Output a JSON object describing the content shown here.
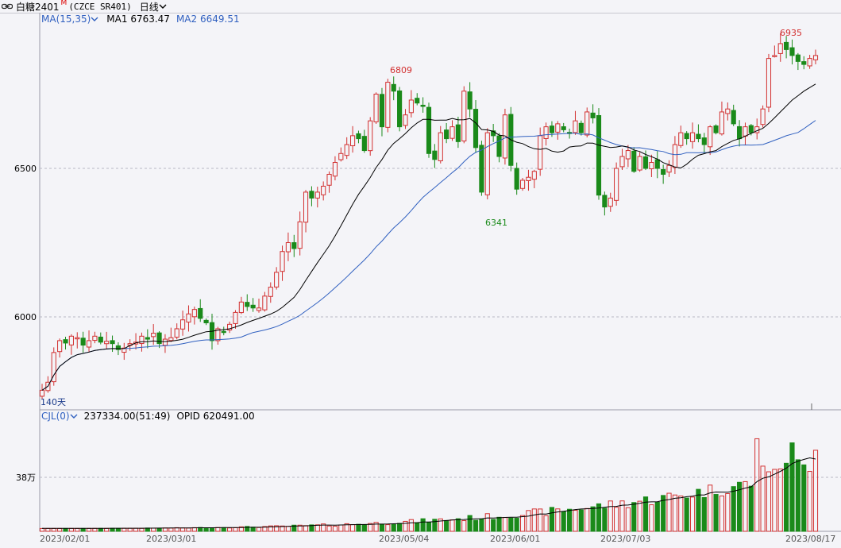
{
  "titlebar": {
    "icon": "link-icon",
    "symbol": "白糖2401",
    "superscript": "M",
    "code": "(CZCE SR401)",
    "period": "日线"
  },
  "ma_info": {
    "indicator": "MA(15,35)",
    "ma1_label": "MA1",
    "ma1_value": "6763.47",
    "ma2_label": "MA2",
    "ma2_value": "6649.51",
    "ma1_color": "#000000",
    "ma2_color": "#3060c0"
  },
  "vol_info": {
    "indicator": "CJL(0)",
    "volume": "237334.00(51:49)",
    "opid_label": "OPID",
    "opid_value": "620491.00"
  },
  "price_axis": {
    "labels": [
      "6500",
      "6000"
    ]
  },
  "volume_axis": {
    "labels": [
      "38万"
    ]
  },
  "annotations": {
    "high1": "6809",
    "low1": "6341",
    "high2": "6935",
    "range": "140天"
  },
  "x_axis": {
    "labels": [
      "2023/02/01",
      "2023/03/01",
      "2023/05/04",
      "2023/06/01",
      "2023/07/03",
      "2023/08/17"
    ]
  },
  "colors": {
    "up": "#d23030",
    "down": "#1a8a1a",
    "background": "#f4f4f8",
    "grid": "#b8b8c4"
  },
  "chart_data": {
    "type": "candlestick",
    "title": "白糖2401 日线",
    "price_ylim": [
      5750,
      7030
    ],
    "volume_unit": "万",
    "closes": [
      5753,
      5780,
      5880,
      5920,
      5912,
      5935,
      5930,
      5905,
      5920,
      5935,
      5915,
      5918,
      5910,
      5890,
      5895,
      5910,
      5915,
      5935,
      5925,
      5945,
      5910,
      5925,
      5930,
      5960,
      5990,
      6010,
      6025,
      5995,
      5980,
      5920,
      5960,
      5950,
      5975,
      6015,
      6050,
      6035,
      6030,
      6030,
      6070,
      6100,
      6150,
      6220,
      6250,
      6230,
      6320,
      6420,
      6400,
      6420,
      6440,
      6480,
      6520,
      6550,
      6580,
      6610,
      6600,
      6560,
      6660,
      6750,
      6640,
      6790,
      6760,
      6640,
      6680,
      6730,
      6720,
      6710,
      6550,
      6530,
      6620,
      6600,
      6640,
      6590,
      6760,
      6700,
      6570,
      6420,
      6620,
      6610,
      6540,
      6680,
      6510,
      6430,
      6460,
      6470,
      6490,
      6610,
      6640,
      6620,
      6650,
      6630,
      6620,
      6660,
      6620,
      6690,
      6670,
      6410,
      6370,
      6400,
      6500,
      6540,
      6560,
      6490,
      6540,
      6500,
      6520,
      6500,
      6480,
      6510,
      6580,
      6620,
      6600,
      6620,
      6600,
      6580,
      6640,
      6620,
      6690,
      6700,
      6650,
      6600,
      6640,
      6620,
      6640,
      6700,
      6870,
      6880,
      6920,
      6900,
      6880,
      6860,
      6850,
      6870,
      6880
    ],
    "ma1_end": 6763.47,
    "ma2_end": 6649.51
  }
}
